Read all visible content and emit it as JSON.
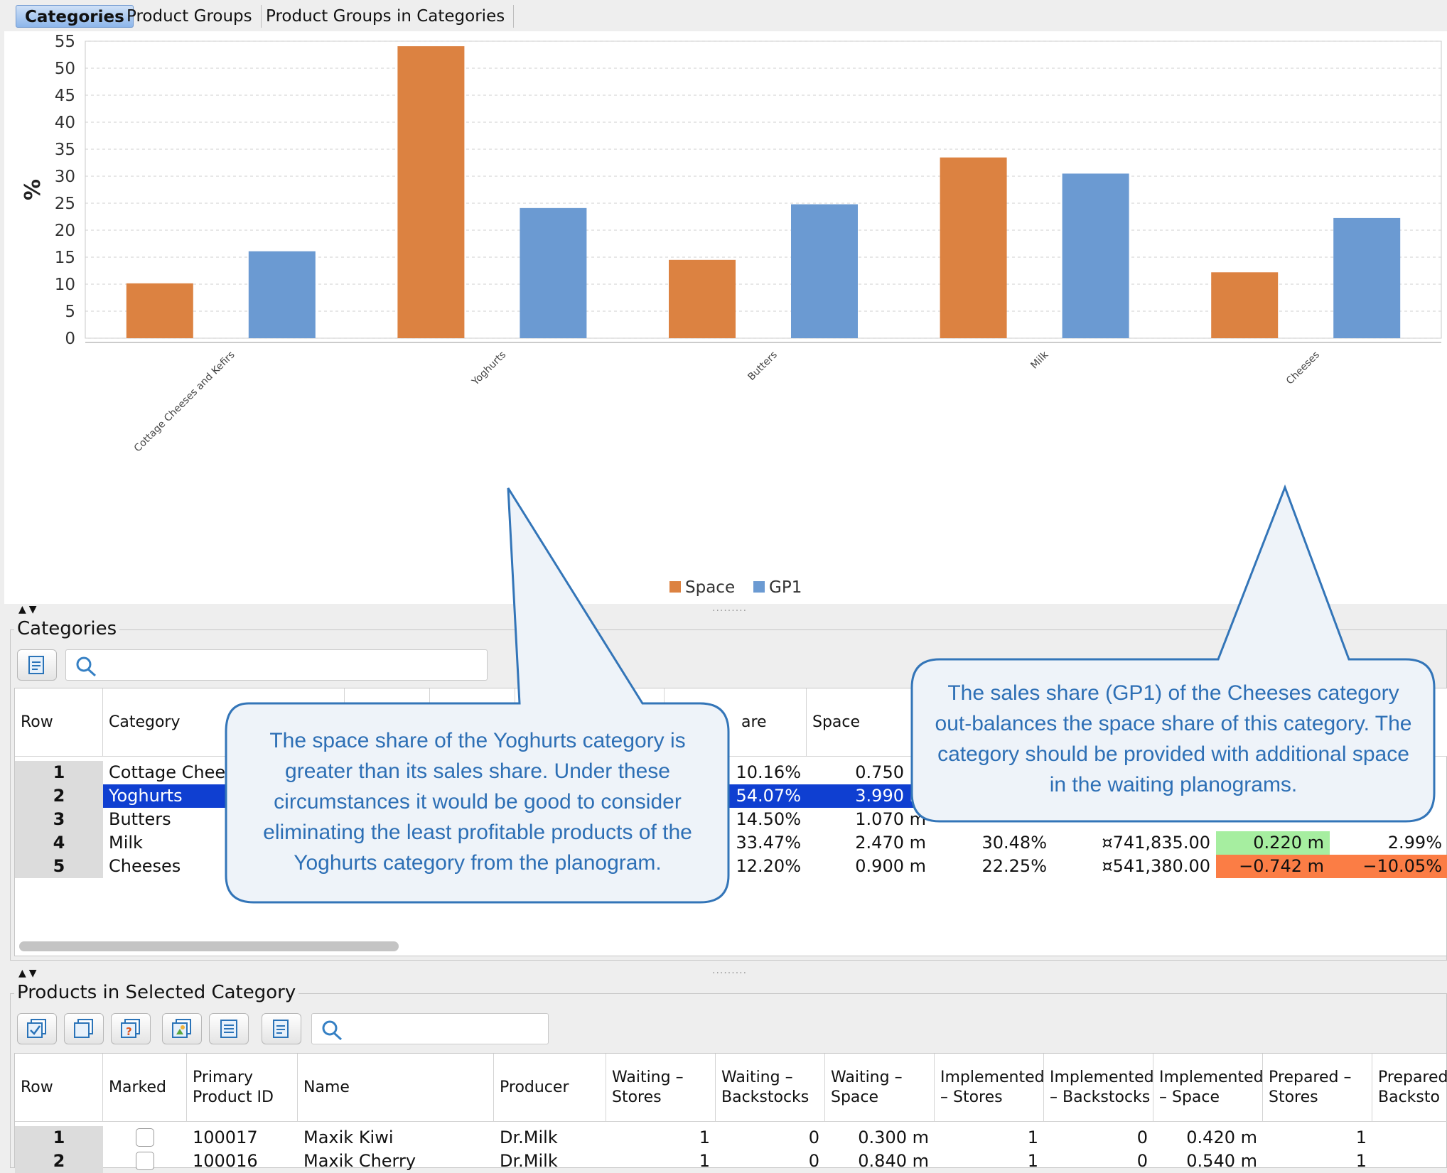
{
  "tabs": [
    {
      "label": "Categories",
      "active": true
    },
    {
      "label": "Product Groups",
      "active": false
    },
    {
      "label": "Product Groups in Categories",
      "active": false
    }
  ],
  "chart_data": {
    "type": "bar",
    "categories": [
      "Cottage Cheeses and Kefirs",
      "Yoghurts",
      "Butters",
      "Milk",
      "Cheeses"
    ],
    "series": [
      {
        "name": "Space",
        "values": [
          10.16,
          54.07,
          14.5,
          33.47,
          12.2
        ],
        "color": "#dc8241"
      },
      {
        "name": "GP1",
        "values": [
          16.1,
          24.1,
          24.8,
          30.48,
          22.25
        ],
        "color": "#6b9ad2"
      }
    ],
    "ylabel": "%",
    "ylim": [
      0,
      55
    ],
    "yticks": [
      0,
      5,
      10,
      15,
      20,
      25,
      30,
      35,
      40,
      45,
      50,
      55
    ],
    "grid": true,
    "legend": "bottom"
  },
  "categories_panel": {
    "title": "Categories",
    "headers": [
      "Row",
      "Category",
      "",
      "",
      "",
      "",
      "are",
      "Space",
      "",
      "",
      "",
      ""
    ],
    "rows": [
      {
        "row": "1",
        "category": "Cottage Chees",
        "share": "10.16%",
        "space": "0.750 m",
        "gp1": "",
        "money": "",
        "diff": "",
        "diffpct": ""
      },
      {
        "row": "2",
        "category": "Yoghurts",
        "share": "54.07%",
        "space": "3.990 m",
        "gp1": "",
        "money": "",
        "diff": "",
        "diffpct": ""
      },
      {
        "row": "3",
        "category": "Butters",
        "share": "14.50%",
        "space": "1.070 m",
        "gp1": "",
        "money": "",
        "diff": "",
        "diffpct": ""
      },
      {
        "row": "4",
        "category": "Milk",
        "share": "33.47%",
        "space": "2.470 m",
        "gp1": "30.48%",
        "money": "¤741,835.00",
        "diff": "0.220 m",
        "diffpct": "2.99%"
      },
      {
        "row": "5",
        "category": "Cheeses",
        "share": "12.20%",
        "space": "0.900 m",
        "gp1": "22.25%",
        "money": "¤541,380.00",
        "diff": "−0.742 m",
        "diffpct": "−10.05%"
      }
    ]
  },
  "products_panel": {
    "title": "Products in Selected Category",
    "headers": [
      "Row",
      "Marked",
      "Primary Product ID",
      "Name",
      "Producer",
      "Waiting – Stores",
      "Waiting – Backstocks",
      "Waiting – Space",
      "Implemented – Stores",
      "Implemented – Backstocks",
      "Implemented – Space",
      "Prepared – Stores",
      "Prepared Backsto"
    ],
    "rows": [
      {
        "row": "1",
        "id": "100017",
        "name": "Maxik Kiwi",
        "producer": "Dr.Milk",
        "ws": "1",
        "wb": "0",
        "wsp": "0.300 m",
        "is": "1",
        "ib": "0",
        "isp": "0.420 m",
        "ps": "1"
      },
      {
        "row": "2",
        "id": "100016",
        "name": "Maxik Cherry",
        "producer": "Dr.Milk",
        "ws": "1",
        "wb": "0",
        "wsp": "0.840 m",
        "is": "1",
        "ib": "0",
        "isp": "0.540 m",
        "ps": "1"
      }
    ]
  },
  "callouts": {
    "yoghurts": "The space share of the Yoghurts category is greater than its sales share. Under these circumstances it would be good to consider eliminating the least profitable products of the Yoghurts category from the planogram.",
    "cheeses": "The sales share (GP1) of the Cheeses category out-balances the space share of this category. The category should be provided with additional space in the waiting planograms."
  },
  "icons": [
    "report-icon",
    "search-icon",
    "check-all-icon",
    "uncheck-icon",
    "question-icon",
    "image-icon",
    "list-icon",
    "report-icon"
  ]
}
